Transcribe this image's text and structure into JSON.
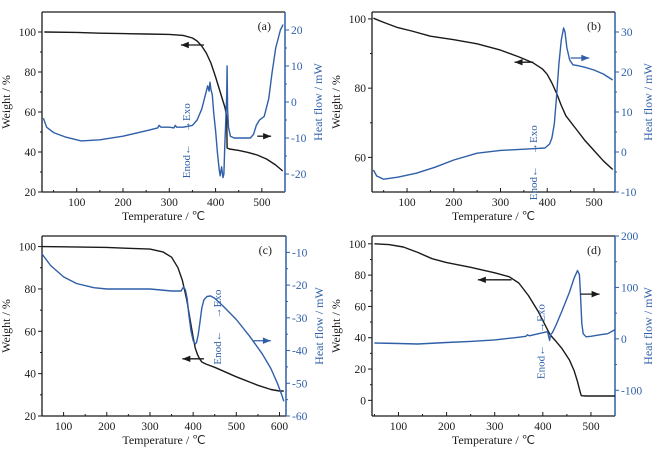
{
  "chart_data": [
    {
      "type": "line",
      "panel_label": "(a)",
      "xlabel": "Temperature / ℃",
      "ylabel": "Weight / %",
      "y2label": "Heat flow / mW",
      "xlim": [
        25,
        550
      ],
      "ylim": [
        20,
        110
      ],
      "y2lim": [
        -25,
        25
      ],
      "xticks": [
        100,
        200,
        300,
        400,
        500
      ],
      "yticks": [
        20,
        40,
        60,
        80,
        100
      ],
      "y2ticks": [
        -20,
        -10,
        0,
        10,
        20
      ],
      "annotation": {
        "exo": "→Exo",
        "endo": "Enod←",
        "x": 345,
        "y2": -10
      },
      "arrows": [
        {
          "series": "weight",
          "direction": "left",
          "x_from": 375,
          "x_to": 325,
          "y": 93.5
        },
        {
          "series": "heat_flow",
          "direction": "right",
          "x_from": 490,
          "x_to": 520,
          "y2": -9.5
        }
      ],
      "series": [
        {
          "name": "Weight",
          "axis": "left",
          "color": "#1a1a1a",
          "x": [
            30,
            100,
            150,
            200,
            250,
            300,
            330,
            350,
            360,
            370,
            380,
            390,
            400,
            410,
            420,
            424,
            425,
            430,
            450,
            470,
            490,
            510,
            530,
            545
          ],
          "y": [
            100,
            99.8,
            99.4,
            99.2,
            99.0,
            98.8,
            98.3,
            97.0,
            95.5,
            93.0,
            89.5,
            84.5,
            77.5,
            70.0,
            62.5,
            58.0,
            42.0,
            41.5,
            40.8,
            39.8,
            38.5,
            36.5,
            33.5,
            30.5
          ]
        },
        {
          "name": "Heat flow",
          "axis": "right",
          "color": "#2f5fa8",
          "x": [
            28,
            35,
            50,
            75,
            110,
            150,
            200,
            250,
            275,
            278,
            282,
            300,
            310,
            313,
            316,
            330,
            350,
            360,
            370,
            378,
            383,
            386,
            388,
            390,
            393,
            396,
            400,
            404,
            408,
            410,
            413,
            416,
            418,
            420,
            422,
            424,
            425,
            426,
            428,
            432,
            440,
            460,
            475,
            482,
            488,
            495,
            505,
            515,
            522,
            530,
            540,
            546
          ],
          "y": [
            -4.5,
            -7,
            -8.5,
            -9.7,
            -10.8,
            -10.5,
            -9.5,
            -8.0,
            -7.2,
            -6.5,
            -7.0,
            -7.0,
            -7.2,
            -6.5,
            -7.0,
            -7.0,
            -6.5,
            -5,
            -2,
            2,
            4.5,
            3,
            5.5,
            3.5,
            2,
            -3,
            -8,
            -14,
            -19,
            -20.5,
            -18,
            -21,
            -20,
            -12,
            -5,
            2,
            10,
            -2,
            -7,
            -9.5,
            -10,
            -10,
            -10,
            -9,
            -6.5,
            -5,
            -4,
            1,
            8,
            15,
            20,
            21.5
          ]
        }
      ]
    },
    {
      "type": "line",
      "panel_label": "(b)",
      "xlabel": "Temperature / ℃",
      "ylabel": "Weight / %",
      "y2label": "Heat flow / mW",
      "xlim": [
        25,
        545
      ],
      "ylim": [
        50,
        102
      ],
      "y2lim": [
        -10,
        35
      ],
      "xticks": [
        100,
        200,
        300,
        400,
        500
      ],
      "yticks": [
        60,
        80,
        100
      ],
      "y2ticks": [
        -10,
        0,
        10,
        20,
        30
      ],
      "annotation": {
        "exo": "→Exo",
        "endo": "Enod←",
        "x": 378,
        "y2": -2
      },
      "arrows": [
        {
          "series": "weight",
          "direction": "left",
          "x_from": 370,
          "x_to": 330,
          "y": 87.5
        },
        {
          "series": "heat_flow",
          "direction": "right",
          "x_from": 450,
          "x_to": 490,
          "y2": 23.5
        }
      ],
      "series": [
        {
          "name": "Weight",
          "axis": "left",
          "color": "#1a1a1a",
          "x": [
            28,
            50,
            80,
            110,
            150,
            200,
            250,
            300,
            340,
            370,
            390,
            400,
            410,
            420,
            430,
            440,
            460,
            480,
            500,
            520,
            540
          ],
          "y": [
            100.2,
            99,
            97.5,
            96.5,
            95,
            94,
            92.8,
            91,
            89,
            87.3,
            85.5,
            84,
            81.5,
            78.5,
            75,
            72,
            68.5,
            65,
            62,
            59,
            56.5
          ]
        },
        {
          "name": "Heat flow",
          "axis": "right",
          "color": "#2f5fa8",
          "x": [
            28,
            35,
            50,
            80,
            120,
            160,
            200,
            250,
            300,
            350,
            380,
            395,
            405,
            410,
            415,
            420,
            425,
            430,
            435,
            438,
            442,
            448,
            455,
            465,
            480,
            500,
            520,
            540
          ],
          "y": [
            -4.5,
            -6,
            -6.8,
            -6.3,
            -5.3,
            -3.8,
            -2,
            -0.3,
            0.4,
            0.7,
            0.9,
            1,
            2,
            3.5,
            7,
            14,
            22,
            28,
            31,
            30,
            26,
            23,
            21.8,
            21.6,
            21.2,
            20.5,
            19.5,
            18
          ]
        }
      ]
    },
    {
      "type": "line",
      "panel_label": "(c)",
      "xlabel": "Temperature / ℃",
      "ylabel": "Weight / %",
      "y2label": "Heat flow / mW",
      "xlim": [
        50,
        615
      ],
      "ylim": [
        20,
        105
      ],
      "y2lim": [
        -60,
        -5
      ],
      "xticks": [
        100,
        200,
        300,
        400,
        500,
        600
      ],
      "yticks": [
        20,
        40,
        60,
        80,
        100
      ],
      "y2ticks": [
        -60,
        -50,
        -40,
        -30,
        -20,
        -10
      ],
      "annotation": {
        "exo": "→Exo",
        "endo": "Enod←",
        "x": 465,
        "y2": -32
      },
      "arrows": [
        {
          "series": "weight",
          "direction": "left",
          "x_from": 425,
          "x_to": 375,
          "y": 47
        },
        {
          "series": "heat_flow",
          "direction": "right",
          "x_from": 540,
          "x_to": 580,
          "y2": -37
        }
      ],
      "series": [
        {
          "name": "Weight",
          "axis": "left",
          "color": "#1a1a1a",
          "x": [
            50,
            100,
            200,
            250,
            300,
            330,
            350,
            365,
            375,
            385,
            395,
            400,
            405,
            410,
            415,
            420,
            430,
            450,
            500,
            550,
            580,
            600,
            610
          ],
          "y": [
            100,
            99.9,
            99.6,
            99.2,
            98.8,
            97.5,
            95,
            90,
            84,
            75,
            63,
            57,
            52,
            49,
            47,
            45.5,
            44.5,
            43,
            38.5,
            34.5,
            32.5,
            31.8,
            31.8
          ]
        },
        {
          "name": "Heat flow",
          "axis": "right",
          "color": "#2f5fa8",
          "x": [
            50,
            70,
            100,
            130,
            170,
            200,
            250,
            300,
            350,
            372,
            378,
            382,
            386,
            390,
            395,
            400,
            405,
            408,
            412,
            416,
            420,
            425,
            432,
            440,
            450,
            470,
            500,
            530,
            560,
            580,
            595,
            605,
            610
          ],
          "y": [
            -10.5,
            -14,
            -17.5,
            -19.5,
            -20.8,
            -21.2,
            -21.2,
            -21.2,
            -21.8,
            -21.8,
            -20.5,
            -21.5,
            -24,
            -29,
            -34,
            -37,
            -38,
            -37.5,
            -35,
            -31,
            -27,
            -24.5,
            -23.5,
            -23.3,
            -24,
            -26.5,
            -30.5,
            -35.5,
            -41,
            -45.5,
            -50,
            -53.5,
            -55.5
          ]
        }
      ]
    },
    {
      "type": "line",
      "panel_label": "(d)",
      "xlabel": "Temperature / ℃",
      "ylabel": "Weight / %",
      "y2label": "Heat flow / mW",
      "xlim": [
        45,
        550
      ],
      "ylim": [
        -10,
        105
      ],
      "y2lim": [
        -150,
        200
      ],
      "xticks": [
        100,
        200,
        300,
        400,
        500
      ],
      "yticks": [
        0,
        20,
        40,
        60,
        80,
        100
      ],
      "y2ticks": [
        -100,
        0,
        100,
        200
      ],
      "annotation": {
        "exo": "→Exo",
        "endo": "Enod←",
        "x": 403,
        "y2": 0
      },
      "arrows": [
        {
          "series": "weight",
          "direction": "left",
          "x_from": 335,
          "x_to": 265,
          "y": 77
        },
        {
          "series": "heat_flow",
          "direction": "right",
          "x_from": 478,
          "x_to": 518,
          "y2": 87
        }
      ],
      "series": [
        {
          "name": "Weight",
          "axis": "left",
          "color": "#1a1a1a",
          "x": [
            50,
            80,
            110,
            140,
            170,
            200,
            250,
            300,
            330,
            350,
            370,
            390,
            405,
            415,
            425,
            440,
            455,
            465,
            472,
            477,
            480,
            490,
            520,
            550
          ],
          "y": [
            100,
            99.5,
            98,
            94.5,
            90.5,
            88,
            85,
            81.5,
            79,
            75,
            67,
            57,
            48,
            42,
            38.5,
            33,
            26,
            19,
            12,
            6,
            3,
            2.8,
            2.8,
            2.8
          ]
        },
        {
          "name": "Heat flow",
          "axis": "right",
          "color": "#2f5fa8",
          "x": [
            50,
            100,
            140,
            200,
            250,
            300,
            340,
            365,
            368,
            372,
            400,
            410,
            414,
            416,
            420,
            428,
            440,
            455,
            465,
            472,
            476,
            478,
            481,
            484,
            490,
            500,
            520,
            535,
            550
          ],
          "y": [
            -8,
            -9,
            -10,
            -7,
            -5,
            -2,
            2,
            5,
            8,
            6,
            12,
            14,
            -3,
            8,
            12,
            28,
            55,
            90,
            118,
            133,
            125,
            90,
            30,
            10,
            4,
            5,
            8,
            10,
            18
          ]
        }
      ]
    }
  ]
}
